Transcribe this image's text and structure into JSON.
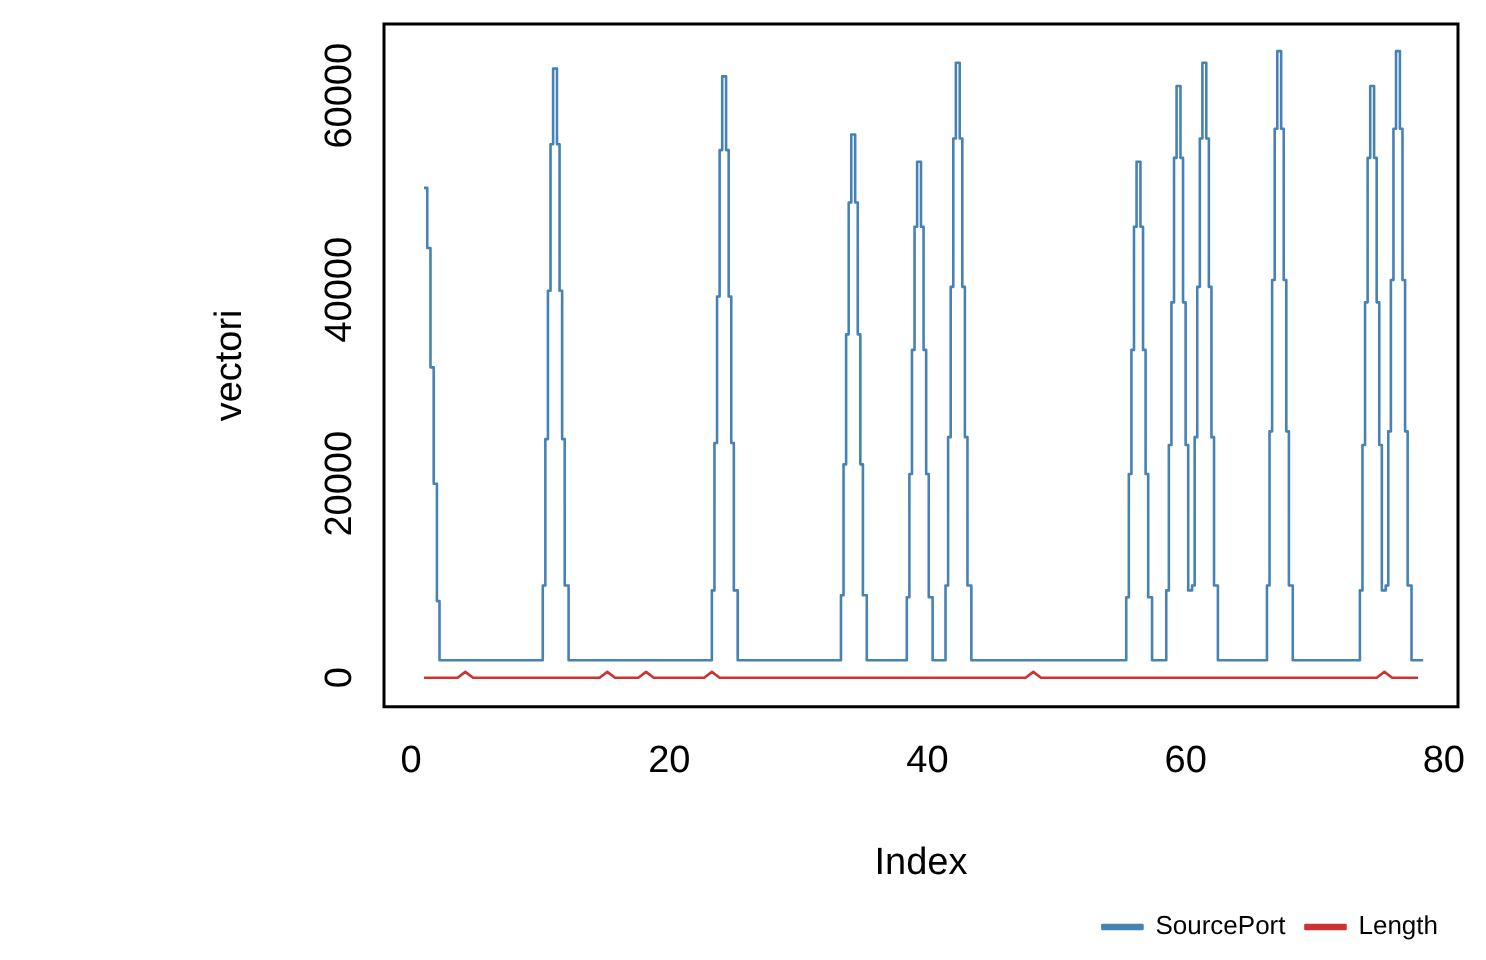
{
  "chart_data": {
    "type": "line",
    "xlabel": "Index",
    "ylabel": "vectori",
    "xlim": [
      -2.1,
      81.1
    ],
    "xticks": [
      0,
      20,
      40,
      60,
      80
    ],
    "ylim": [
      -3000,
      67400
    ],
    "yticks": [
      0,
      20000,
      40000,
      60000
    ],
    "grid": false,
    "legend": "bottom",
    "marker": "none",
    "line_style": "solid",
    "series": [
      {
        "name": "SourcePort",
        "type": "step",
        "color": "#4682b4",
        "x": [
          1,
          1.25,
          1.5,
          1.75,
          2,
          2.2,
          10.2,
          10.4,
          10.6,
          10.8,
          11,
          11.3,
          11.5,
          11.7,
          11.9,
          12.2,
          23.3,
          23.5,
          23.7,
          23.9,
          24.1,
          24.4,
          24.6,
          24.8,
          25,
          25.3,
          33.3,
          33.5,
          33.7,
          33.9,
          34.1,
          34.4,
          34.6,
          34.8,
          35,
          35.3,
          38.4,
          38.6,
          38.8,
          39,
          39.2,
          39.5,
          39.7,
          39.9,
          40.1,
          40.4,
          41.4,
          41.6,
          41.8,
          42,
          42.2,
          42.5,
          42.7,
          42.9,
          43.1,
          43.4,
          55.4,
          55.6,
          55.8,
          56,
          56.2,
          56.5,
          56.7,
          56.9,
          57.1,
          57.4,
          58.5,
          58.7,
          58.9,
          59.1,
          59.3,
          59.6,
          59.8,
          60,
          60.2,
          60.5,
          60.7,
          60.9,
          61.1,
          61.3,
          61.6,
          61.8,
          62,
          62.2,
          62.5,
          66.3,
          66.5,
          66.7,
          66.9,
          67.1,
          67.4,
          67.6,
          67.8,
          68,
          68.3,
          73.5,
          73.7,
          73.9,
          74.1,
          74.3,
          74.6,
          74.8,
          75,
          75.2,
          75.5,
          75.7,
          75.9,
          76.1,
          76.3,
          76.6,
          76.8,
          77,
          77.2,
          77.5,
          78.4
        ],
        "values": [
          50500,
          44300,
          32000,
          20000,
          7900,
          1800,
          9500,
          24600,
          39900,
          55000,
          62800,
          55000,
          39900,
          24600,
          9500,
          1800,
          9000,
          24200,
          39300,
          54400,
          62000,
          54400,
          39300,
          24200,
          9000,
          1800,
          8500,
          22000,
          35400,
          49000,
          56000,
          49000,
          35400,
          22000,
          8500,
          1800,
          8300,
          21000,
          33800,
          46500,
          53200,
          46500,
          33800,
          21000,
          8300,
          1800,
          9500,
          24800,
          40300,
          55600,
          63400,
          55600,
          40300,
          24800,
          9500,
          1800,
          8300,
          21000,
          33800,
          46500,
          53200,
          46500,
          33800,
          21000,
          8300,
          1800,
          9000,
          24000,
          38700,
          53600,
          61000,
          53600,
          38700,
          24000,
          9000,
          9500,
          24800,
          40300,
          55600,
          63400,
          55600,
          40300,
          24800,
          9500,
          1800,
          9500,
          25400,
          41000,
          56600,
          64600,
          56600,
          41000,
          25400,
          9500,
          1800,
          9000,
          24000,
          38700,
          53600,
          61000,
          53600,
          38700,
          24000,
          9000,
          9500,
          25400,
          41000,
          56600,
          64600,
          56600,
          41000,
          25400,
          9500,
          1800,
          1800
        ]
      },
      {
        "name": "Length",
        "type": "line",
        "color": "#cc3333",
        "x": [
          1,
          3.6,
          4.2,
          4.8,
          14.6,
          15.2,
          15.8,
          17.6,
          18.2,
          18.8,
          22.7,
          23.3,
          23.9,
          47.6,
          48.2,
          48.8,
          74.8,
          75.4,
          76,
          78
        ],
        "values": [
          0,
          0,
          600,
          0,
          0,
          600,
          0,
          0,
          600,
          0,
          0,
          600,
          0,
          0,
          600,
          0,
          0,
          600,
          0,
          0
        ]
      }
    ]
  }
}
